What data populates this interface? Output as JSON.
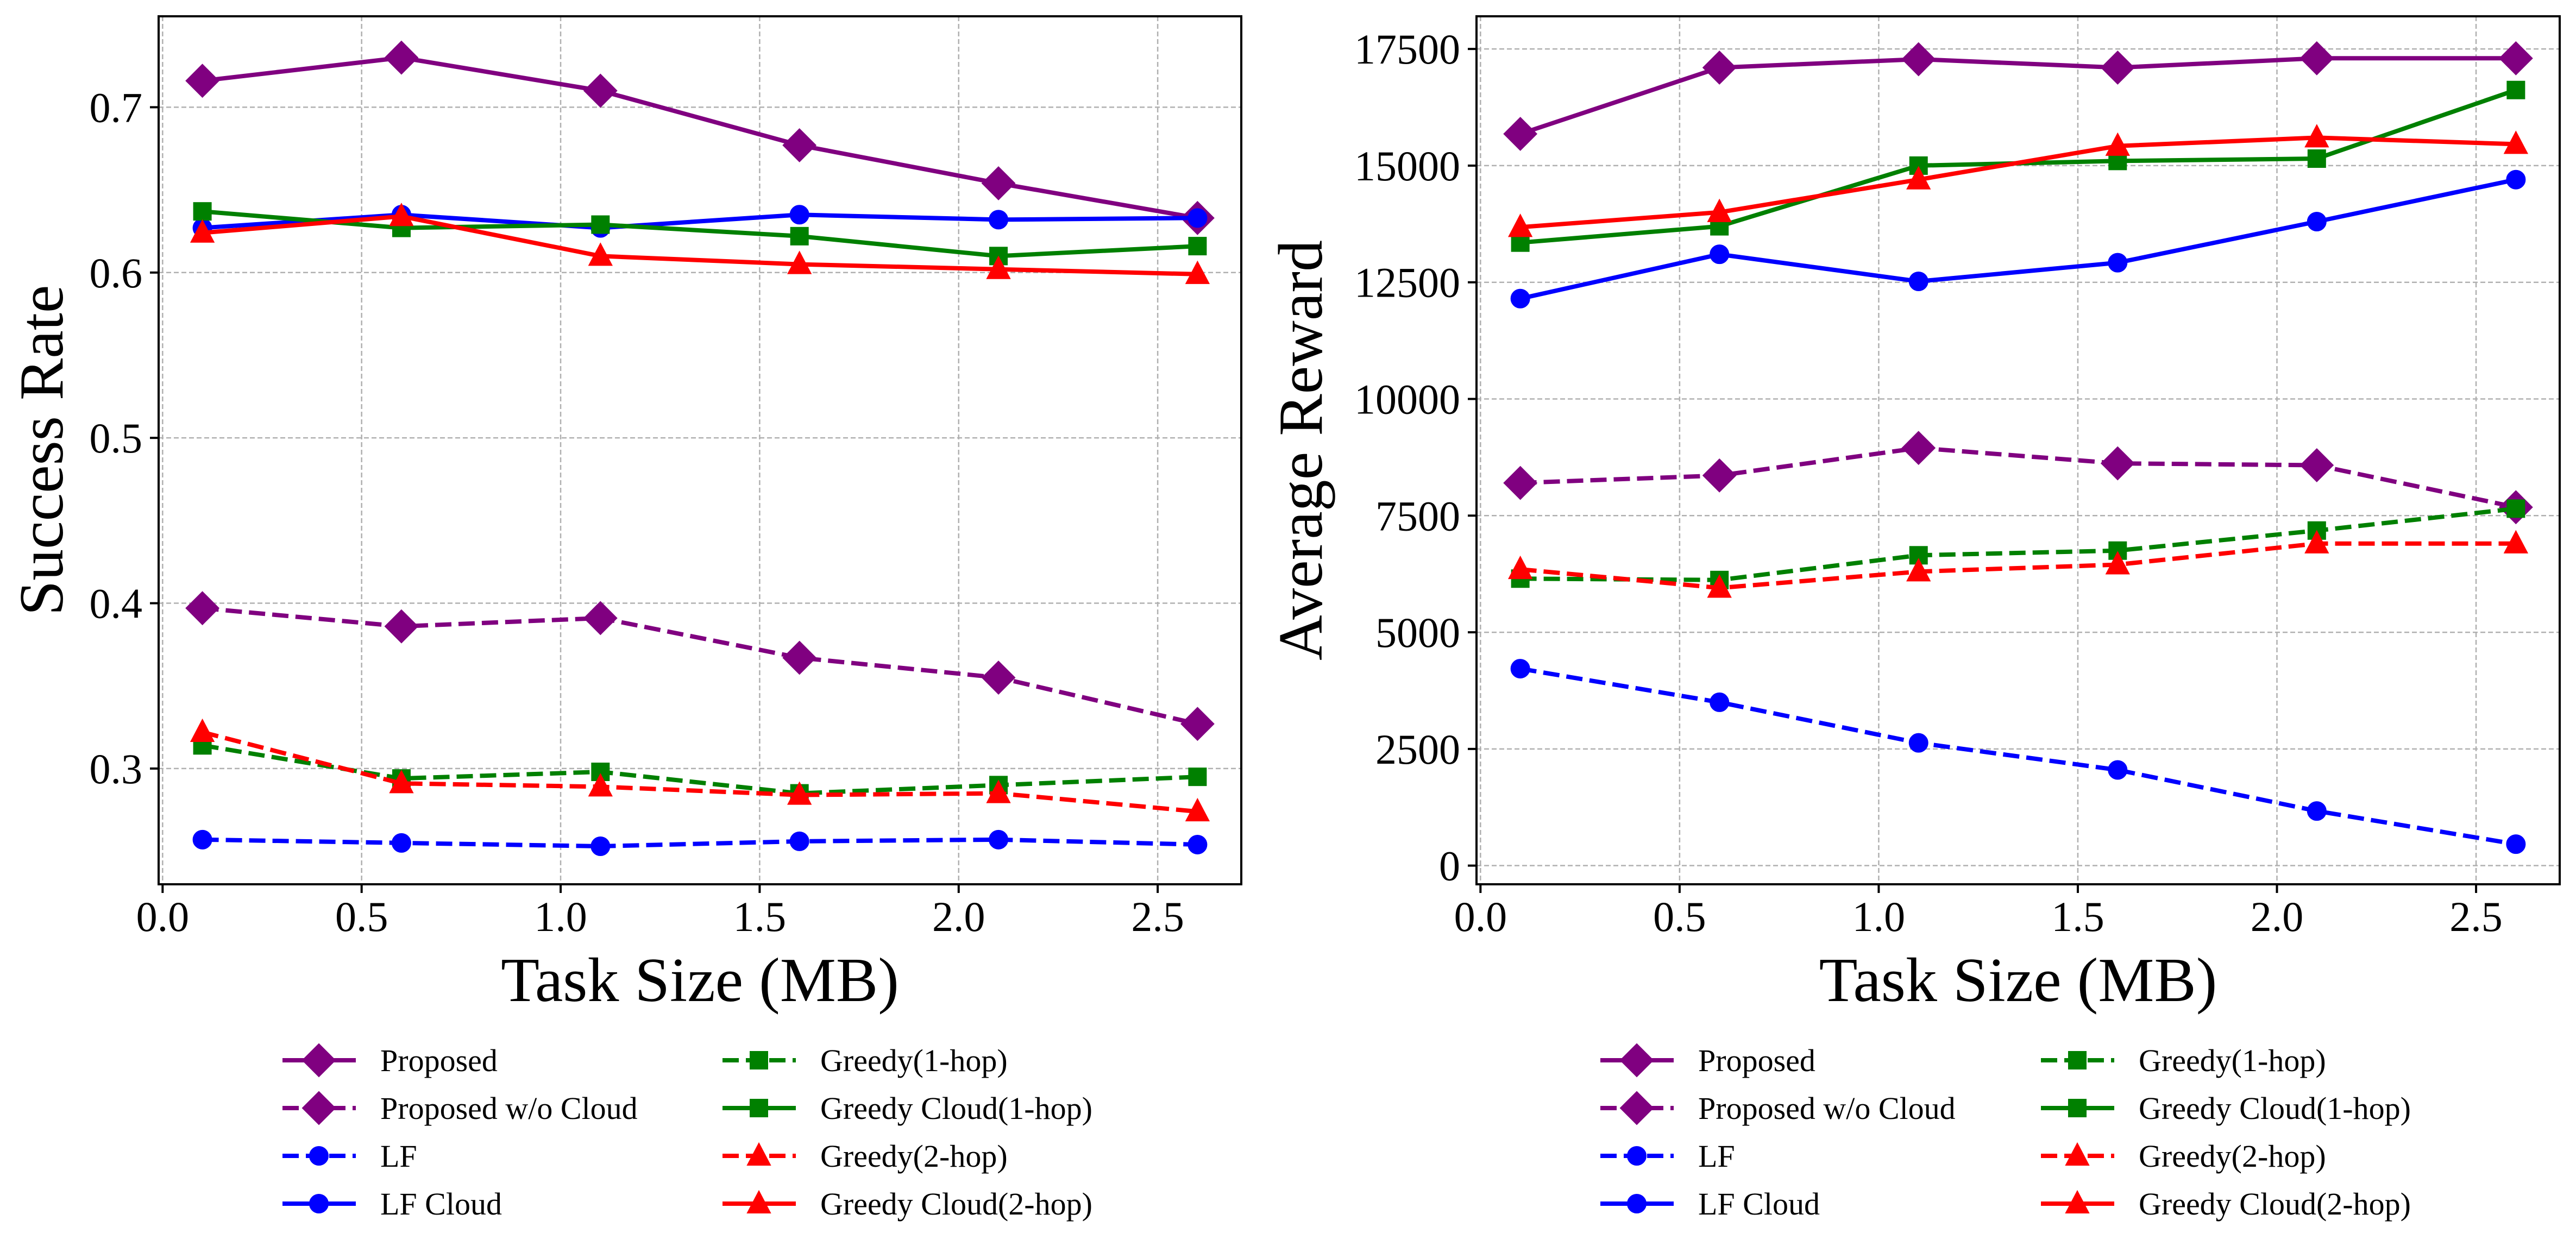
{
  "chart_data": [
    {
      "type": "line",
      "title": "",
      "xlabel": "Task Size (MB)",
      "ylabel": "Success Rate",
      "xlim": [
        -0.01,
        2.71
      ],
      "ylim": [
        0.23,
        0.755
      ],
      "xticks": [
        "0.0",
        "0.5",
        "1.0",
        "1.5",
        "2.0",
        "2.5"
      ],
      "xtick_values": [
        0.0,
        0.5,
        1.0,
        1.5,
        2.0,
        2.5
      ],
      "yticks": [
        "0.3",
        "0.4",
        "0.5",
        "0.6",
        "0.7"
      ],
      "ytick_values": [
        0.3,
        0.4,
        0.5,
        0.6,
        0.7
      ],
      "grid": true,
      "legend_position": "bottom",
      "x": [
        0.1,
        0.6,
        1.1,
        1.6,
        2.1,
        2.6
      ],
      "series": [
        {
          "name": "Proposed",
          "color": "#800080",
          "dash": "solid",
          "marker": "diamond",
          "values": [
            0.716,
            0.73,
            0.71,
            0.677,
            0.654,
            0.633
          ]
        },
        {
          "name": "Proposed w/o Cloud",
          "color": "#800080",
          "dash": "dashed",
          "marker": "diamond",
          "values": [
            0.397,
            0.386,
            0.391,
            0.367,
            0.355,
            0.327
          ]
        },
        {
          "name": "LF",
          "color": "#0000ff",
          "dash": "dashed",
          "marker": "circle",
          "values": [
            0.257,
            0.255,
            0.253,
            0.256,
            0.257,
            0.254
          ]
        },
        {
          "name": "LF Cloud",
          "color": "#0000ff",
          "dash": "solid",
          "marker": "circle",
          "values": [
            0.627,
            0.635,
            0.627,
            0.635,
            0.632,
            0.633
          ]
        },
        {
          "name": "Greedy(1-hop)",
          "color": "#008000",
          "dash": "dashed",
          "marker": "square",
          "values": [
            0.314,
            0.294,
            0.298,
            0.285,
            0.29,
            0.295
          ]
        },
        {
          "name": "Greedy Cloud(1-hop)",
          "color": "#008000",
          "dash": "solid",
          "marker": "square",
          "values": [
            0.637,
            0.627,
            0.629,
            0.622,
            0.61,
            0.616
          ]
        },
        {
          "name": "Greedy(2-hop)",
          "color": "#ff0000",
          "dash": "dashed",
          "marker": "triangle",
          "values": [
            0.322,
            0.291,
            0.289,
            0.284,
            0.285,
            0.274
          ]
        },
        {
          "name": "Greedy Cloud(2-hop)",
          "color": "#ff0000",
          "dash": "solid",
          "marker": "triangle",
          "values": [
            0.624,
            0.634,
            0.61,
            0.605,
            0.602,
            0.599
          ]
        }
      ]
    },
    {
      "type": "line",
      "title": "",
      "xlabel": "Task Size (MB)",
      "ylabel": "Average Reward",
      "xlim": [
        -0.01,
        2.71
      ],
      "ylim": [
        -400,
        18200
      ],
      "xticks": [
        "0.0",
        "0.5",
        "1.0",
        "1.5",
        "2.0",
        "2.5"
      ],
      "xtick_values": [
        0.0,
        0.5,
        1.0,
        1.5,
        2.0,
        2.5
      ],
      "yticks": [
        "0",
        "2500",
        "5000",
        "7500",
        "10000",
        "12500",
        "15000",
        "17500"
      ],
      "ytick_values": [
        0,
        2500,
        5000,
        7500,
        10000,
        12500,
        15000,
        17500
      ],
      "grid": true,
      "legend_position": "bottom",
      "x": [
        0.1,
        0.6,
        1.1,
        1.6,
        2.1,
        2.6
      ],
      "series": [
        {
          "name": "Proposed",
          "color": "#800080",
          "dash": "solid",
          "marker": "diamond",
          "values": [
            15680,
            17100,
            17280,
            17100,
            17300,
            17300
          ]
        },
        {
          "name": "Proposed w/o Cloud",
          "color": "#800080",
          "dash": "dashed",
          "marker": "diamond",
          "values": [
            8200,
            8360,
            8950,
            8620,
            8580,
            7680
          ]
        },
        {
          "name": "LF",
          "color": "#0000ff",
          "dash": "dashed",
          "marker": "circle",
          "values": [
            4220,
            3500,
            2630,
            2050,
            1170,
            460
          ]
        },
        {
          "name": "LF Cloud",
          "color": "#0000ff",
          "dash": "solid",
          "marker": "circle",
          "values": [
            12150,
            13100,
            12520,
            12920,
            13800,
            14700
          ]
        },
        {
          "name": "Greedy(1-hop)",
          "color": "#008000",
          "dash": "dashed",
          "marker": "square",
          "values": [
            6150,
            6120,
            6650,
            6750,
            7180,
            7650
          ]
        },
        {
          "name": "Greedy Cloud(1-hop)",
          "color": "#008000",
          "dash": "solid",
          "marker": "square",
          "values": [
            13350,
            13700,
            15000,
            15100,
            15150,
            16620
          ]
        },
        {
          "name": "Greedy(2-hop)",
          "color": "#ff0000",
          "dash": "dashed",
          "marker": "triangle",
          "values": [
            6350,
            5950,
            6300,
            6450,
            6900,
            6900
          ]
        },
        {
          "name": "Greedy Cloud(2-hop)",
          "color": "#ff0000",
          "dash": "solid",
          "marker": "triangle",
          "values": [
            13680,
            14000,
            14700,
            15420,
            15600,
            15460
          ]
        }
      ]
    }
  ]
}
